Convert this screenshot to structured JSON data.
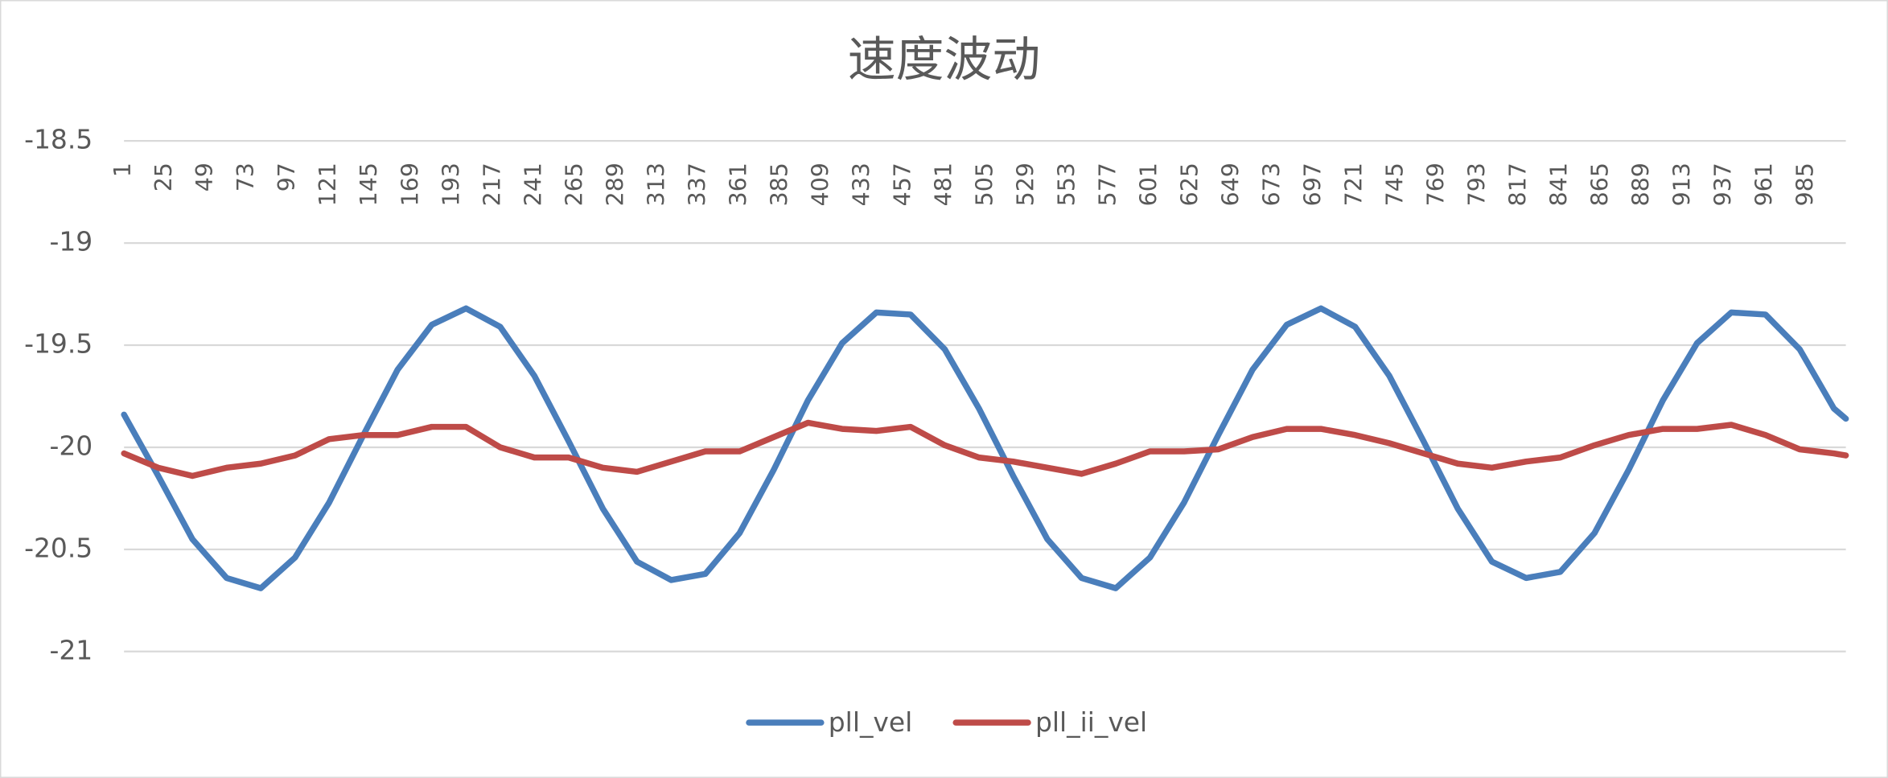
{
  "chart_data": {
    "type": "line",
    "title": "速度波动",
    "x": [
      1,
      21,
      41,
      61,
      81,
      101,
      121,
      141,
      161,
      181,
      201,
      221,
      241,
      261,
      281,
      301,
      321,
      341,
      361,
      381,
      401,
      421,
      441,
      461,
      481,
      501,
      521,
      541,
      561,
      581,
      601,
      621,
      641,
      661,
      681,
      701,
      721,
      741,
      761,
      781,
      801,
      821,
      841,
      861,
      881,
      901,
      921,
      941,
      961,
      981,
      1001,
      1008
    ],
    "series": [
      {
        "name": "pll_vel",
        "color": "#4a7ebb",
        "values": [
          -19.84,
          -20.14,
          -20.45,
          -20.64,
          -20.69,
          -20.54,
          -20.27,
          -19.94,
          -19.62,
          -19.4,
          -19.32,
          -19.41,
          -19.65,
          -19.97,
          -20.3,
          -20.56,
          -20.65,
          -20.62,
          -20.42,
          -20.11,
          -19.77,
          -19.49,
          -19.34,
          -19.35,
          -19.52,
          -19.81,
          -20.14,
          -20.45,
          -20.64,
          -20.69,
          -20.54,
          -20.27,
          -19.94,
          -19.62,
          -19.4,
          -19.32,
          -19.41,
          -19.65,
          -19.97,
          -20.3,
          -20.56,
          -20.64,
          -20.61,
          -20.42,
          -20.11,
          -19.77,
          -19.49,
          -19.34,
          -19.35,
          -19.52,
          -19.81,
          -19.86
        ]
      },
      {
        "name": "pll_ii_vel",
        "color": "#be4b48",
        "values": [
          -20.03,
          -20.1,
          -20.14,
          -20.1,
          -20.08,
          -20.04,
          -19.96,
          -19.94,
          -19.94,
          -19.9,
          -19.9,
          -20.0,
          -20.05,
          -20.05,
          -20.1,
          -20.12,
          -20.07,
          -20.02,
          -20.02,
          -19.95,
          -19.88,
          -19.91,
          -19.92,
          -19.9,
          -19.99,
          -20.05,
          -20.07,
          -20.1,
          -20.13,
          -20.08,
          -20.02,
          -20.02,
          -20.01,
          -19.95,
          -19.91,
          -19.91,
          -19.94,
          -19.98,
          -20.03,
          -20.08,
          -20.1,
          -20.07,
          -20.05,
          -19.99,
          -19.94,
          -19.91,
          -19.91,
          -19.89,
          -19.94,
          -20.01,
          -20.03,
          -20.04
        ]
      }
    ],
    "xlim": [
      1,
      1008
    ],
    "xticks": [
      1,
      25,
      49,
      73,
      97,
      121,
      145,
      169,
      193,
      217,
      241,
      265,
      289,
      313,
      337,
      361,
      385,
      409,
      433,
      457,
      481,
      505,
      529,
      553,
      577,
      601,
      625,
      649,
      673,
      697,
      721,
      745,
      769,
      793,
      817,
      841,
      865,
      889,
      913,
      937,
      961,
      985
    ],
    "ylim": [
      -21,
      -18.5
    ],
    "yticks": [
      -18.5,
      -19,
      -19.5,
      -20,
      -20.5,
      -21
    ],
    "grid": true
  }
}
